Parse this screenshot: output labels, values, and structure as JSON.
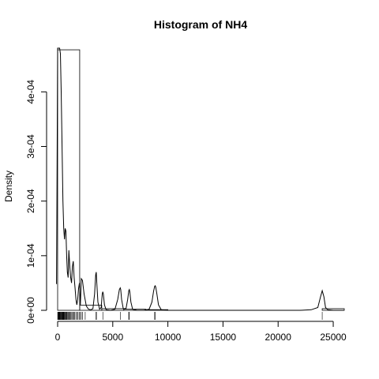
{
  "chart_data": {
    "type": "bar",
    "title": "Histogram of  NH4",
    "xlabel": "",
    "ylabel": "Density",
    "xlim": [
      0,
      26000
    ],
    "ylim": [
      0,
      0.00048
    ],
    "x_ticks": [
      0,
      5000,
      10000,
      15000,
      20000,
      25000
    ],
    "x_tick_labels": [
      "0",
      "5000",
      "10000",
      "15000",
      "20000",
      "25000"
    ],
    "y_ticks": [
      0,
      0.0001,
      0.0002,
      0.0003,
      0.0004
    ],
    "y_tick_labels": [
      "0e+00",
      "1e-04",
      "2e-04",
      "3e-04",
      "4e-04"
    ],
    "grid": false,
    "bins": [
      {
        "from": 0,
        "to": 2000,
        "density": 0.000477
      },
      {
        "from": 2000,
        "to": 4000,
        "density": 9.4e-06
      },
      {
        "from": 4000,
        "to": 6000,
        "density": 3e-06
      },
      {
        "from": 6000,
        "to": 8000,
        "density": 2e-06
      },
      {
        "from": 8000,
        "to": 10000,
        "density": 1.2e-06
      },
      {
        "from": 10000,
        "to": 12000,
        "density": 0
      },
      {
        "from": 12000,
        "to": 14000,
        "density": 0
      },
      {
        "from": 14000,
        "to": 16000,
        "density": 0
      },
      {
        "from": 16000,
        "to": 18000,
        "density": 0
      },
      {
        "from": 18000,
        "to": 20000,
        "density": 0
      },
      {
        "from": 20000,
        "to": 22000,
        "density": 0
      },
      {
        "from": 22000,
        "to": 24000,
        "density": 0
      },
      {
        "from": 24000,
        "to": 26000,
        "density": 3e-06
      }
    ],
    "density_curve": {
      "x": [
        -100,
        0,
        60,
        120,
        180,
        250,
        320,
        400,
        480,
        550,
        620,
        680,
        750,
        820,
        880,
        950,
        1020,
        1100,
        1180,
        1260,
        1340,
        1420,
        1500,
        1580,
        1660,
        1740,
        1820,
        1900,
        1980,
        2060,
        2150,
        2250,
        2400,
        2600,
        2800,
        3000,
        3200,
        3350,
        3450,
        3500,
        3550,
        3650,
        3800,
        3950,
        4050,
        4100,
        4150,
        4250,
        4400,
        4800,
        5200,
        5450,
        5600,
        5680,
        5720,
        5800,
        5950,
        6200,
        6350,
        6450,
        6500,
        6550,
        6650,
        6800,
        7200,
        7800,
        8300,
        8550,
        8700,
        8800,
        8850,
        8900,
        9000,
        9150,
        9400,
        10000,
        14000,
        20000,
        22000,
        23000,
        23600,
        23850,
        24000,
        24150,
        24300,
        24500,
        25000,
        25500,
        26000
      ],
      "y": [
        4.8e-05,
        0.00048,
        0.00048,
        0.00048,
        0.00048,
        0.00047,
        0.0004,
        0.0003,
        0.0002,
        0.00015,
        0.00013,
        0.00015,
        0.000145,
        0.0001,
        7e-05,
        6e-05,
        0.00011,
        8e-05,
        6e-05,
        5e-05,
        8e-05,
        9e-05,
        6e-05,
        4e-05,
        2e-05,
        1e-05,
        2e-05,
        4e-05,
        5e-05,
        1e-05,
        5.8e-05,
        5.5e-05,
        3e-05,
        8e-06,
        2e-06,
        1e-06,
        3e-06,
        3e-05,
        6.5e-05,
        7e-05,
        5e-05,
        1.5e-05,
        2e-06,
        5e-06,
        3e-05,
        3.4e-05,
        3e-05,
        1e-05,
        1e-06,
        0.0,
        2e-06,
        2e-05,
        3.8e-05,
        4.1e-05,
        3.8e-05,
        2e-05,
        3e-06,
        3e-06,
        2e-05,
        3.6e-05,
        3.8e-05,
        3.4e-05,
        1.5e-05,
        2e-06,
        0.0,
        0.0,
        2e-06,
        1.5e-05,
        3.5e-05,
        4.4e-05,
        4.5e-05,
        4.2e-05,
        3e-05,
        1e-05,
        1e-06,
        0.0,
        0.0,
        0.0,
        0.0,
        1e-06,
        5e-06,
        2.5e-05,
        3.6e-05,
        2.5e-05,
        5e-06,
        1e-06,
        0.0,
        0.0,
        0.0
      ]
    },
    "rug": [
      5,
      40,
      70,
      95,
      130,
      160,
      190,
      220,
      260,
      290,
      330,
      370,
      400,
      440,
      480,
      520,
      560,
      600,
      640,
      690,
      740,
      790,
      840,
      900,
      960,
      1020,
      1080,
      1150,
      1220,
      1300,
      1380,
      1460,
      1550,
      1650,
      1750,
      1850,
      1950,
      2050,
      2150,
      2250,
      2500,
      3480,
      3520,
      4100,
      5700,
      6450,
      6500,
      8800,
      8850,
      24000
    ]
  }
}
